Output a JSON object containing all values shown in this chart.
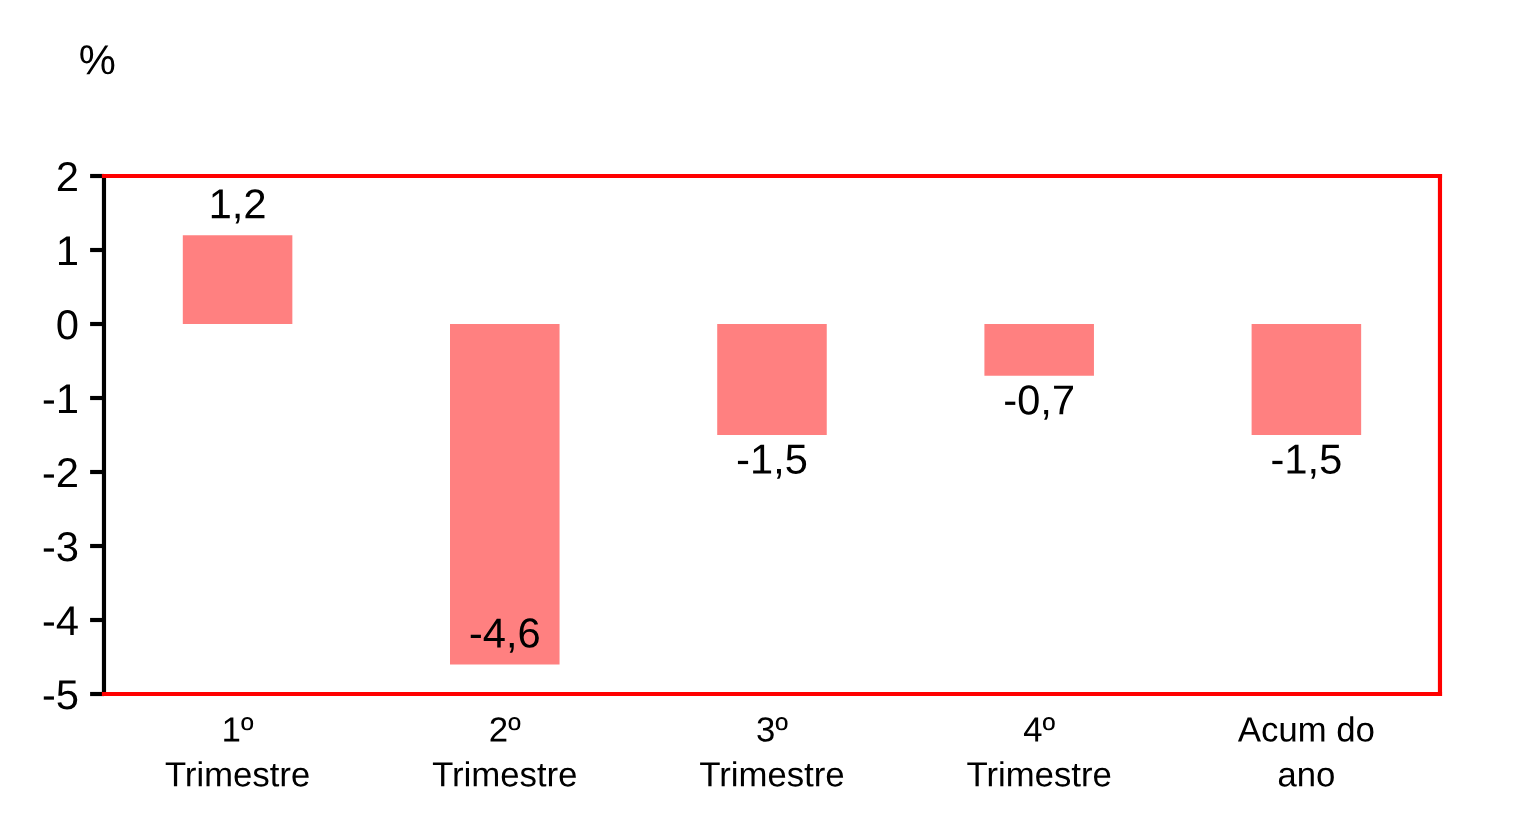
{
  "chart_data": {
    "type": "bar",
    "ylabel": "%",
    "categories": [
      "1º\nTrimestre",
      "2º\nTrimestre",
      "3º\nTrimestre",
      "4º\nTrimestre",
      "Acum do\nano"
    ],
    "values": [
      1.2,
      -4.6,
      -1.5,
      -0.7,
      -1.5
    ],
    "color": "#ff8080",
    "value_labels": [
      "1,2",
      "-4,6",
      "-1,5",
      "-0,7",
      "-1,5"
    ],
    "ylim": [
      -5,
      2
    ],
    "yticks": [
      -5,
      -4,
      -3,
      -2,
      -1,
      0,
      1,
      2
    ]
  }
}
